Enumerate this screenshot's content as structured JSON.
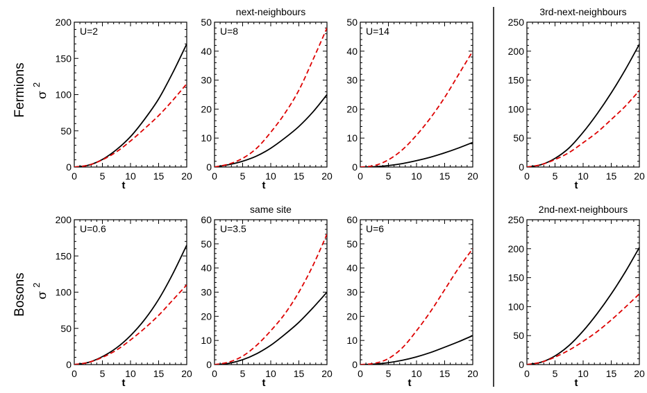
{
  "row_labels": [
    "Fermions",
    "Bosons"
  ],
  "ylabel_symbol": "σ",
  "ylabel_sup": "2",
  "colors": {
    "series1": "#000000",
    "series2": "#dd0000"
  },
  "chart_data": [
    {
      "type": "line",
      "row": 0,
      "col": 0,
      "title": "",
      "annotation": "U=2",
      "xlabel": "t",
      "xlim": [
        0,
        20
      ],
      "ylim": [
        0,
        200
      ],
      "xticks": [
        0,
        5,
        10,
        15,
        20
      ],
      "yticks": [
        0,
        50,
        100,
        150,
        200
      ],
      "series": [
        {
          "style": "solid",
          "color": "#000000",
          "x": [
            0,
            2.5,
            5,
            7.5,
            10,
            12.5,
            15,
            17.5,
            20
          ],
          "y": [
            0,
            2.5,
            10.5,
            24,
            42,
            66,
            94,
            130,
            170
          ]
        },
        {
          "style": "dashed",
          "color": "#dd0000",
          "x": [
            0,
            2.5,
            5,
            7.5,
            10,
            12.5,
            15,
            17.5,
            20
          ],
          "y": [
            0,
            2.5,
            10,
            21,
            36,
            53,
            71,
            92,
            115
          ]
        }
      ]
    },
    {
      "type": "line",
      "row": 0,
      "col": 1,
      "title": "next-neighbours",
      "annotation": "U=8",
      "xlabel": "t",
      "xlim": [
        0,
        20
      ],
      "ylim": [
        0,
        50
      ],
      "xticks": [
        0,
        5,
        10,
        15,
        20
      ],
      "yticks": [
        0,
        10,
        20,
        30,
        40,
        50
      ],
      "series": [
        {
          "style": "solid",
          "color": "#000000",
          "x": [
            0,
            2.5,
            5,
            7.5,
            10,
            12.5,
            15,
            17.5,
            20
          ],
          "y": [
            0,
            0.8,
            2,
            3.8,
            6.5,
            10,
            14,
            19,
            25
          ]
        },
        {
          "style": "dashed",
          "color": "#dd0000",
          "x": [
            0,
            2.5,
            5,
            7.5,
            10,
            12.5,
            15,
            17.5,
            20
          ],
          "y": [
            0,
            1,
            3,
            6.5,
            12,
            18.5,
            26.5,
            37,
            48
          ]
        }
      ]
    },
    {
      "type": "line",
      "row": 0,
      "col": 2,
      "title": "",
      "annotation": "U=14",
      "xlabel": "",
      "xlim": [
        0,
        20
      ],
      "ylim": [
        0,
        50
      ],
      "xticks": [
        0,
        5,
        10,
        15,
        20
      ],
      "yticks": [
        0,
        10,
        20,
        30,
        40,
        50
      ],
      "series": [
        {
          "style": "solid",
          "color": "#000000",
          "x": [
            0,
            2.5,
            5,
            7.5,
            10,
            12.5,
            15,
            17.5,
            20
          ],
          "y": [
            0,
            0.1,
            0.5,
            1.2,
            2.2,
            3.4,
            4.9,
            6.6,
            8.5
          ]
        },
        {
          "style": "dashed",
          "color": "#dd0000",
          "x": [
            0,
            2.5,
            5,
            7.5,
            10,
            12.5,
            15,
            17.5,
            20
          ],
          "y": [
            0,
            0.5,
            2.5,
            6,
            11,
            17,
            24,
            32,
            40
          ]
        }
      ]
    },
    {
      "type": "line",
      "row": 0,
      "col": 3,
      "title": "3rd-next-neighbours",
      "annotation": "",
      "xlabel": "t",
      "xlim": [
        0,
        20
      ],
      "ylim": [
        0,
        250
      ],
      "xticks": [
        0,
        5,
        10,
        15,
        20
      ],
      "yticks": [
        0,
        50,
        100,
        150,
        200,
        250
      ],
      "series": [
        {
          "style": "solid",
          "color": "#000000",
          "x": [
            0,
            2.5,
            5,
            7.5,
            10,
            12.5,
            15,
            17.5,
            20
          ],
          "y": [
            0,
            4,
            15,
            33,
            60,
            92,
            128,
            168,
            212
          ]
        },
        {
          "style": "dashed",
          "color": "#dd0000",
          "x": [
            0,
            2.5,
            5,
            7.5,
            10,
            12.5,
            15,
            17.5,
            20
          ],
          "y": [
            0,
            4,
            13,
            25,
            42,
            60,
            82,
            105,
            132
          ]
        }
      ]
    },
    {
      "type": "line",
      "row": 1,
      "col": 0,
      "title": "",
      "annotation": "U=0.6",
      "xlabel": "t",
      "xlim": [
        0,
        20
      ],
      "ylim": [
        0,
        200
      ],
      "xticks": [
        0,
        5,
        10,
        15,
        20
      ],
      "yticks": [
        0,
        50,
        100,
        150,
        200
      ],
      "series": [
        {
          "style": "solid",
          "color": "#000000",
          "x": [
            0,
            2.5,
            5,
            7.5,
            10,
            12.5,
            15,
            17.5,
            20
          ],
          "y": [
            0,
            3,
            11,
            23,
            40,
            62,
            90,
            125,
            165
          ]
        },
        {
          "style": "dashed",
          "color": "#dd0000",
          "x": [
            0,
            2.5,
            5,
            7.5,
            10,
            12.5,
            15,
            17.5,
            20
          ],
          "y": [
            0,
            3,
            10,
            20,
            34,
            50,
            68,
            89,
            110
          ]
        }
      ]
    },
    {
      "type": "line",
      "row": 1,
      "col": 1,
      "title": "same site",
      "annotation": "U=3.5",
      "xlabel": "t",
      "xlim": [
        0,
        20
      ],
      "ylim": [
        0,
        60
      ],
      "xticks": [
        0,
        5,
        10,
        15,
        20
      ],
      "yticks": [
        0,
        10,
        20,
        30,
        40,
        50,
        60
      ],
      "series": [
        {
          "style": "solid",
          "color": "#000000",
          "x": [
            0,
            2.5,
            5,
            7.5,
            10,
            12.5,
            15,
            17.5,
            20
          ],
          "y": [
            0,
            0.5,
            2,
            4.5,
            8,
            12.5,
            17.5,
            23.5,
            30
          ]
        },
        {
          "style": "dashed",
          "color": "#dd0000",
          "x": [
            0,
            2.5,
            5,
            7.5,
            10,
            12.5,
            15,
            17.5,
            20
          ],
          "y": [
            0,
            1,
            3.5,
            8,
            14,
            21,
            30,
            41,
            54
          ]
        }
      ]
    },
    {
      "type": "line",
      "row": 1,
      "col": 2,
      "title": "",
      "annotation": "U=6",
      "xlabel": "t",
      "xlim": [
        0,
        20
      ],
      "ylim": [
        0,
        60
      ],
      "xticks": [
        0,
        5,
        10,
        15,
        20
      ],
      "yticks": [
        0,
        10,
        20,
        30,
        40,
        50,
        60
      ],
      "series": [
        {
          "style": "solid",
          "color": "#000000",
          "x": [
            0,
            2.5,
            5,
            7.5,
            10,
            12.5,
            15,
            17.5,
            20
          ],
          "y": [
            0,
            0.2,
            0.8,
            1.8,
            3.2,
            5,
            7.2,
            9.5,
            12
          ]
        },
        {
          "style": "dashed",
          "color": "#dd0000",
          "x": [
            0,
            2.5,
            5,
            7.5,
            10,
            12.5,
            15,
            17.5,
            20
          ],
          "y": [
            0,
            0.5,
            2.5,
            7,
            14,
            22,
            31,
            40,
            48
          ]
        }
      ]
    },
    {
      "type": "line",
      "row": 1,
      "col": 3,
      "title": "2nd-next-neighbours",
      "annotation": "",
      "xlabel": "t",
      "xlim": [
        0,
        20
      ],
      "ylim": [
        0,
        250
      ],
      "xticks": [
        0,
        5,
        10,
        15,
        20
      ],
      "yticks": [
        0,
        50,
        100,
        150,
        200,
        250
      ],
      "series": [
        {
          "style": "solid",
          "color": "#000000",
          "x": [
            0,
            2.5,
            5,
            7.5,
            10,
            12.5,
            15,
            17.5,
            20
          ],
          "y": [
            0,
            4,
            15,
            33,
            58,
            88,
            122,
            160,
            202
          ]
        },
        {
          "style": "dashed",
          "color": "#dd0000",
          "x": [
            0,
            2.5,
            5,
            7.5,
            10,
            12.5,
            15,
            17.5,
            20
          ],
          "y": [
            0,
            4,
            13,
            25,
            40,
            57,
            77,
            99,
            122
          ]
        }
      ]
    }
  ]
}
